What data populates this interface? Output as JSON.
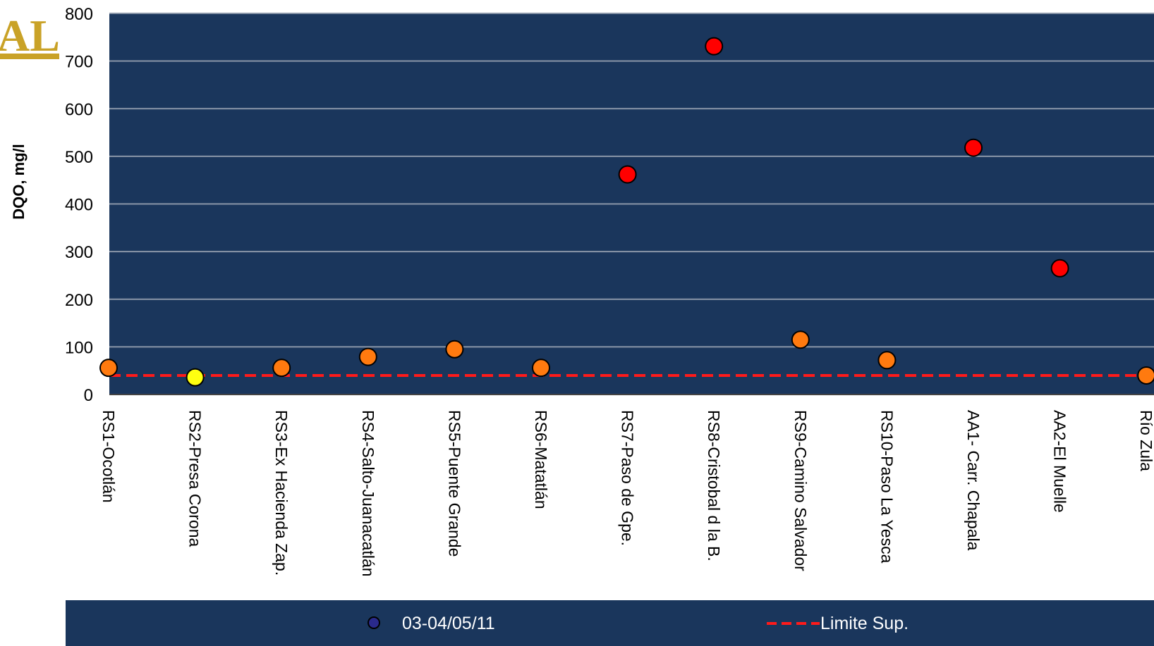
{
  "chart_data": {
    "type": "scatter",
    "ylabel": "DQO,  mg/l",
    "xlabel": "",
    "title": "",
    "ylim": [
      0,
      800
    ],
    "yticks": [
      0,
      100,
      200,
      300,
      400,
      500,
      600,
      700,
      800
    ],
    "grid": true,
    "legend_position": "bottom",
    "colors": {
      "plot_bg": "#1a365c",
      "grid": "#8a96a8",
      "limit": "#ff1a1a",
      "marker_red": "#ff0000",
      "marker_orange": "#ff7a0f",
      "marker_yellow": "#ffff10",
      "legend_marker": "#2a2a8c"
    },
    "categories": [
      "RS1-Ocotlán",
      "RS2-Presa Corona",
      "RS3-Ex Hacienda Zap.",
      "RS4-Salto-Juanacatlán",
      "RS5-Puente Grande",
      "RS6-Matatlán",
      "RS7-Paso de Gpe.",
      "RS8-Cristobal d la B.",
      "RS9-Camino Salvador",
      "RS10-Paso La Yesca",
      "AA1- Carr. Chapala",
      "AA2-El Muelle",
      "Río Zula"
    ],
    "series": [
      {
        "name": "03-04/05/11",
        "values": [
          56,
          36,
          56,
          79,
          95,
          56,
          462,
          731,
          115,
          72,
          518,
          265,
          40
        ],
        "marker_colors": [
          "orange",
          "yellow",
          "orange",
          "orange",
          "orange",
          "orange",
          "red",
          "red",
          "orange",
          "orange",
          "red",
          "red",
          "orange"
        ]
      },
      {
        "name": "Limite Sup.",
        "type": "line",
        "style": "dashed",
        "value": 40
      }
    ]
  }
}
